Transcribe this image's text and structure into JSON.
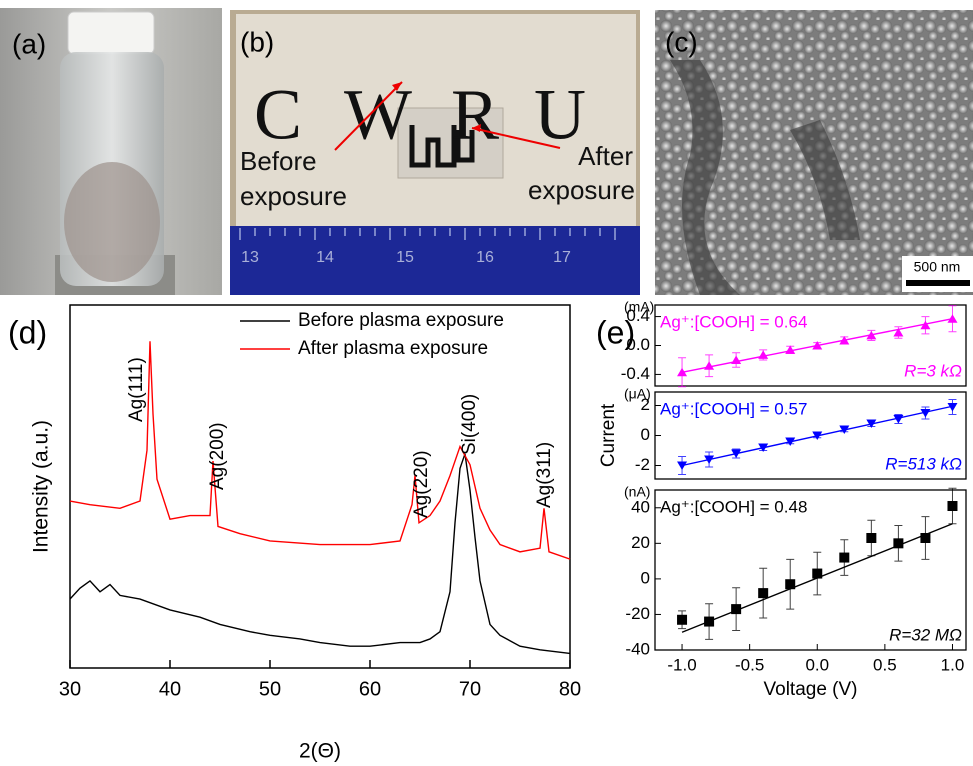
{
  "panels": {
    "a": {
      "label": "(a)"
    },
    "b": {
      "label": "(b)",
      "letters": [
        "C",
        "W",
        "R",
        "U"
      ],
      "before": [
        "Before",
        "exposure"
      ],
      "after": [
        "After",
        "exposure"
      ],
      "ruler": [
        "13",
        "14",
        "15",
        "16",
        "17"
      ]
    },
    "c": {
      "label": "(c)",
      "scale": "500 nm"
    }
  },
  "chart_data": [
    {
      "type": "line",
      "label": "(d)",
      "xlabel": "2(Θ)",
      "ylabel": "Intensity (a.u.)",
      "xlim": [
        30,
        80
      ],
      "xticks": [
        30,
        40,
        50,
        60,
        70,
        80
      ],
      "ylim": [
        0,
        100
      ],
      "series": [
        {
          "name": "Before plasma exposure",
          "color": "#000000",
          "x": [
            30,
            31,
            32,
            33,
            34,
            35,
            37,
            40,
            43,
            45,
            48,
            50,
            53,
            55,
            58,
            60,
            63,
            65,
            66,
            67,
            68,
            68.5,
            69,
            69.5,
            70,
            70.5,
            71,
            72,
            73,
            75,
            77,
            80
          ],
          "values": [
            19,
            22,
            24,
            21,
            23,
            20,
            19,
            16,
            14,
            12,
            10,
            9,
            8,
            7,
            6,
            6,
            7,
            7,
            8,
            10,
            21,
            40,
            55,
            59,
            49,
            36,
            24,
            12,
            9,
            6,
            5,
            4
          ]
        },
        {
          "name": "After plasma exposure",
          "color": "#ff0000",
          "x": [
            30,
            32,
            35,
            37,
            37.7,
            38,
            38.3,
            38.7,
            40,
            42,
            44,
            44.3,
            44.8,
            47,
            50,
            55,
            60,
            63,
            64.2,
            64.5,
            64.9,
            66,
            67,
            68,
            69,
            70,
            71,
            72,
            73,
            75,
            77,
            77.4,
            77.9,
            80
          ],
          "values": [
            46,
            45,
            44,
            46,
            60,
            90,
            70,
            52,
            41,
            42,
            42,
            57,
            39,
            37,
            35,
            34,
            34,
            35,
            45,
            53,
            40,
            42,
            46,
            53,
            61,
            56,
            44,
            38,
            34,
            32,
            33,
            44,
            32,
            30
          ]
        }
      ],
      "annotations": [
        "Ag(111)",
        "Ag(200)",
        "Ag(220)",
        "Si(400)",
        "Ag(311)"
      ]
    },
    {
      "type": "scatter",
      "label": "(e)",
      "unit": "(mA)",
      "marker": "triangle-up",
      "color": "#ff00ff",
      "xlim": [
        -1.2,
        1.1
      ],
      "ylim": [
        -0.56,
        0.56
      ],
      "yticks": [
        {
          "value": -0.4,
          "label": "-0.4"
        },
        {
          "value": 0,
          "label": "0.0"
        },
        0.4
      ],
      "ratio": "Ag⁺:[COOH] = 0.64",
      "resistance": "R=3 kΩ",
      "x": [
        -1.0,
        -0.8,
        -0.6,
        -0.4,
        -0.2,
        0.0,
        0.2,
        0.4,
        0.6,
        0.8,
        1.0
      ],
      "values": [
        -0.37,
        -0.28,
        -0.2,
        -0.13,
        -0.06,
        0.0,
        0.07,
        0.14,
        0.18,
        0.28,
        0.37
      ],
      "errors": [
        0.2,
        0.15,
        0.1,
        0.07,
        0.05,
        0.04,
        0.05,
        0.07,
        0.08,
        0.12,
        0.18
      ],
      "fit_x": [
        -1.0,
        1.0
      ],
      "fit_values": [
        -0.37,
        0.37
      ]
    },
    {
      "type": "scatter",
      "unit": "(μA)",
      "marker": "triangle-down",
      "color": "#0000ff",
      "ylabel": "Current",
      "xlim": [
        -1.2,
        1.1
      ],
      "ylim": [
        -2.9,
        2.9
      ],
      "yticks": [
        -2,
        0,
        2
      ],
      "ratio": "Ag⁺:[COOH] = 0.57",
      "resistance": "R=513 kΩ",
      "x": [
        -1.0,
        -0.8,
        -0.6,
        -0.4,
        -0.2,
        0.0,
        0.2,
        0.4,
        0.6,
        0.8,
        1.0
      ],
      "values": [
        -2.0,
        -1.6,
        -1.2,
        -0.8,
        -0.4,
        0.0,
        0.4,
        0.8,
        1.1,
        1.5,
        1.9
      ],
      "errors": [
        0.6,
        0.5,
        0.3,
        0.2,
        0.15,
        0.15,
        0.15,
        0.2,
        0.3,
        0.4,
        0.5
      ],
      "fit_x": [
        -1.0,
        1.0
      ],
      "fit_values": [
        -2.0,
        1.95
      ]
    },
    {
      "type": "scatter",
      "unit": "(nA)",
      "marker": "square",
      "color": "#000000",
      "xlabel": "Voltage (V)",
      "xlim": [
        -1.2,
        1.1
      ],
      "ylim": [
        -40,
        50
      ],
      "xticks": [
        {
          "value": -1,
          "label": "-1.0"
        },
        -0.5,
        {
          "value": 0,
          "label": "0.0"
        },
        0.5,
        {
          "value": 1,
          "label": "1.0"
        }
      ],
      "yticks": [
        -40,
        -20,
        0,
        20,
        40
      ],
      "ratio": "Ag⁺:[COOH] = 0.48",
      "resistance": "R=32 MΩ",
      "x": [
        -1.0,
        -0.8,
        -0.6,
        -0.4,
        -0.2,
        0.0,
        0.2,
        0.4,
        0.6,
        0.8,
        1.0
      ],
      "values": [
        -23,
        -24,
        -17,
        -8,
        -3,
        3,
        12,
        23,
        20,
        23,
        41
      ],
      "errors": [
        5,
        10,
        12,
        14,
        14,
        12,
        10,
        10,
        10,
        12,
        10
      ],
      "fit_x": [
        -1.0,
        1.0
      ],
      "fit_values": [
        -30,
        31
      ]
    }
  ]
}
